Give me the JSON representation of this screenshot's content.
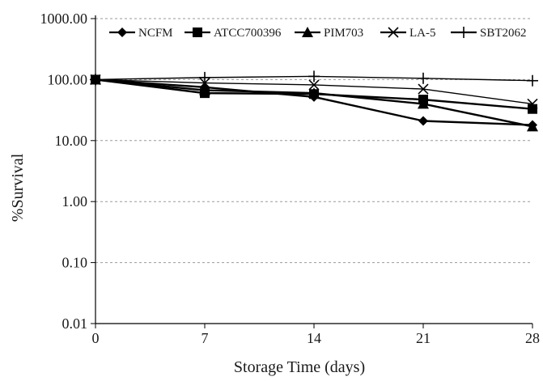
{
  "chart_data": {
    "type": "line",
    "title": "",
    "xlabel": "Storage Time (days)",
    "ylabel": "%Survival",
    "y_scale": "log",
    "ylim": [
      0.01,
      1000
    ],
    "xlim": [
      0,
      28
    ],
    "grid": "horizontal dashed",
    "legend_position": "top",
    "x": [
      0,
      7,
      14,
      21,
      28
    ],
    "x_tick_labels": [
      "0",
      "7",
      "14",
      "21",
      "28"
    ],
    "y_tick_values": [
      0.01,
      0.1,
      1,
      10,
      100,
      1000
    ],
    "y_tick_labels": [
      "0.01",
      "0.10",
      "1.00",
      "10.00",
      "100.00",
      "1000.00"
    ],
    "series": [
      {
        "name": "NCFM",
        "marker": "diamond",
        "color": "#000000",
        "values": [
          100,
          75,
          52,
          21,
          18
        ]
      },
      {
        "name": "ATCC700396",
        "marker": "square",
        "color": "#000000",
        "values": [
          100,
          60,
          58,
          47,
          33
        ]
      },
      {
        "name": "PIM703",
        "marker": "triangle",
        "color": "#000000",
        "values": [
          100,
          67,
          60,
          40,
          17
        ]
      },
      {
        "name": "LA-5",
        "marker": "x",
        "color": "#000000",
        "values": [
          100,
          88,
          82,
          70,
          40
        ]
      },
      {
        "name": "SBT2062",
        "marker": "plus",
        "color": "#000000",
        "values": [
          100,
          108,
          113,
          105,
          96
        ]
      }
    ]
  }
}
